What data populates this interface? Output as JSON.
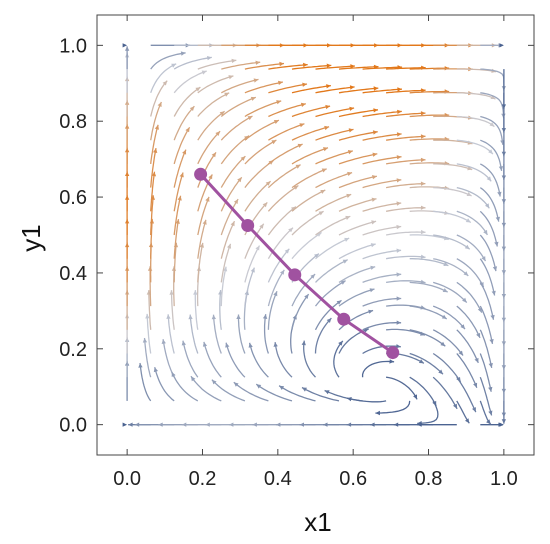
{
  "chart_data": {
    "type": "streamplot",
    "xlabel": "x1",
    "ylabel": "y1",
    "xlim": [
      -0.08,
      1.08
    ],
    "ylim": [
      -0.08,
      1.08
    ],
    "x_ticks": [
      "0.0",
      "0.2",
      "0.4",
      "0.6",
      "0.8",
      "1.0"
    ],
    "y_ticks": [
      "0.0",
      "0.2",
      "0.4",
      "0.6",
      "0.8",
      "1.0"
    ],
    "colors": {
      "stream_low": "#4a6290",
      "stream_mid": "#c8ccd6",
      "stream_high": "#e2781a",
      "path": "#a052a0"
    },
    "path_points": [
      {
        "x": 0.195,
        "y": 0.66
      },
      {
        "x": 0.32,
        "y": 0.525
      },
      {
        "x": 0.445,
        "y": 0.395
      },
      {
        "x": 0.575,
        "y": 0.278
      },
      {
        "x": 0.705,
        "y": 0.19
      }
    ]
  }
}
